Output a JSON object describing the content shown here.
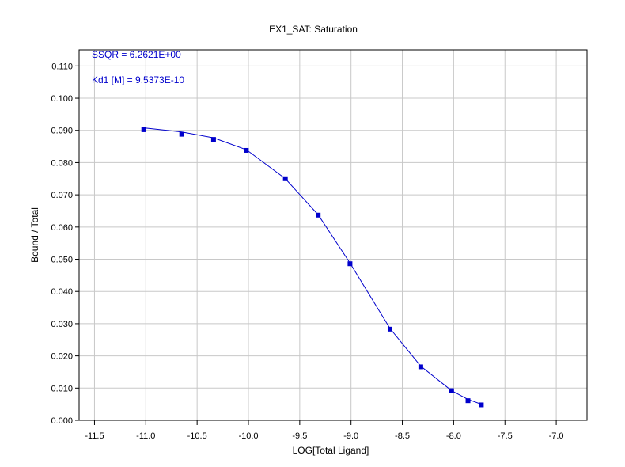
{
  "chart_data": {
    "type": "scatter",
    "title": "EX1_SAT: Saturation",
    "xlabel": "LOG[Total Ligand]",
    "ylabel": "Bound / Total",
    "xlim": [
      -11.65,
      -6.7
    ],
    "ylim": [
      0.0,
      0.115
    ],
    "grid": true,
    "xticks": [
      -11.5,
      -11.0,
      -10.5,
      -10.0,
      -9.5,
      -9.0,
      -8.5,
      -8.0,
      -7.5,
      -7.0
    ],
    "xtick_labels": [
      "-11.5",
      "-11.0",
      "-10.5",
      "-10.0",
      "-9.5",
      "-9.0",
      "-8.5",
      "-8.0",
      "-7.5",
      "-7.0"
    ],
    "yticks": [
      0.0,
      0.01,
      0.02,
      0.03,
      0.04,
      0.05,
      0.06,
      0.07,
      0.08,
      0.09,
      0.1,
      0.11
    ],
    "ytick_labels": [
      "0.000",
      "0.010",
      "0.020",
      "0.030",
      "0.040",
      "0.050",
      "0.060",
      "0.070",
      "0.080",
      "0.090",
      "0.100",
      "0.110"
    ],
    "annotations": [
      "SSQR =  6.2621E+00",
      "Kd1 [M] =  9.5373E-10"
    ],
    "colors": {
      "series": "#0000cc"
    },
    "series": [
      {
        "kind": "points",
        "x": [
          -11.02,
          -10.65,
          -10.34,
          -10.02,
          -9.64,
          -9.32,
          -9.01,
          -8.62,
          -8.32,
          -8.02,
          -7.86,
          -7.73
        ],
        "y": [
          0.0902,
          0.0888,
          0.0872,
          0.0838,
          0.075,
          0.0637,
          0.0486,
          0.0283,
          0.0166,
          0.0092,
          0.0061,
          0.0048
        ]
      },
      {
        "kind": "fit",
        "x": [
          -11.0,
          -10.65,
          -10.34,
          -10.02,
          -9.64,
          -9.32,
          -9.01,
          -8.62,
          -8.32,
          -8.02,
          -7.86,
          -7.73
        ],
        "y": [
          0.0907,
          0.0895,
          0.0877,
          0.084,
          0.075,
          0.0638,
          0.0488,
          0.0285,
          0.0168,
          0.0092,
          0.0065,
          0.005
        ]
      }
    ]
  }
}
